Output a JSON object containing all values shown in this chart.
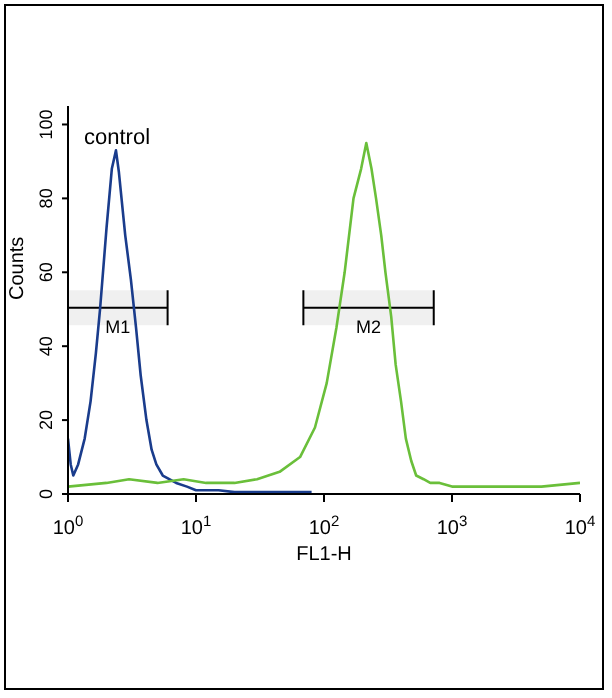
{
  "chart_data": {
    "type": "line",
    "xlabel": "FL1-H",
    "ylabel": "Counts",
    "log": "x",
    "xlim": [
      1,
      10000
    ],
    "xticks": [
      {
        "value": 1,
        "label": "10$^{0}$"
      },
      {
        "value": 10,
        "label": "10$^{1}$"
      },
      {
        "value": 100,
        "label": "10$^{2}$"
      },
      {
        "value": 1000,
        "label": "10$^{3}$"
      },
      {
        "value": 10000,
        "label": "10$^{4}$"
      }
    ],
    "ylim": [
      0,
      105
    ],
    "yticks": [
      0,
      20,
      40,
      60,
      80,
      100
    ],
    "annotations": [
      "control"
    ],
    "grid": false,
    "legend": false,
    "marker": "none",
    "line_style": "solid",
    "bands": [
      {
        "axis": "x",
        "from": 1,
        "to": 6,
        "label": "M1",
        "color": "#000000"
      },
      {
        "axis": "x",
        "from": 69,
        "to": 720,
        "label": "M2",
        "color": "#000000"
      }
    ],
    "series": [
      {
        "name": null,
        "color": "#1a3c8c",
        "x": [
          1,
          1.05,
          1.1,
          1.2,
          1.35,
          1.5,
          1.65,
          1.78,
          2,
          2.2,
          2.37,
          2.5,
          2.8,
          3.1,
          3.4,
          3.7,
          4.1,
          4.5,
          4.9,
          5.5,
          7,
          8.5,
          10,
          15,
          20,
          30,
          50,
          80
        ],
        "values": [
          15,
          8,
          5,
          8,
          15,
          25,
          38,
          50,
          72,
          88,
          93,
          87,
          70,
          58,
          45,
          32,
          20,
          12,
          8,
          5,
          3,
          2,
          1,
          1,
          0.5,
          0.5,
          0.5,
          0.5
        ]
      },
      {
        "name": null,
        "color": "#6abf3a",
        "x": [
          1,
          2,
          3,
          5,
          8,
          12,
          20,
          30,
          45,
          65,
          85,
          105,
          125,
          145,
          170,
          195,
          214,
          235,
          255,
          280,
          302,
          335,
          363,
          400,
          436,
          480,
          525,
          600,
          676,
          800,
          1000,
          2000,
          5000,
          10000
        ],
        "values": [
          2,
          3,
          4,
          3,
          4,
          3,
          3,
          4,
          6,
          10,
          18,
          30,
          45,
          60,
          80,
          88,
          95,
          88,
          80,
          70,
          60,
          48,
          35,
          25,
          15,
          9,
          5,
          4,
          3,
          3,
          2,
          2,
          2,
          3
        ]
      }
    ]
  }
}
